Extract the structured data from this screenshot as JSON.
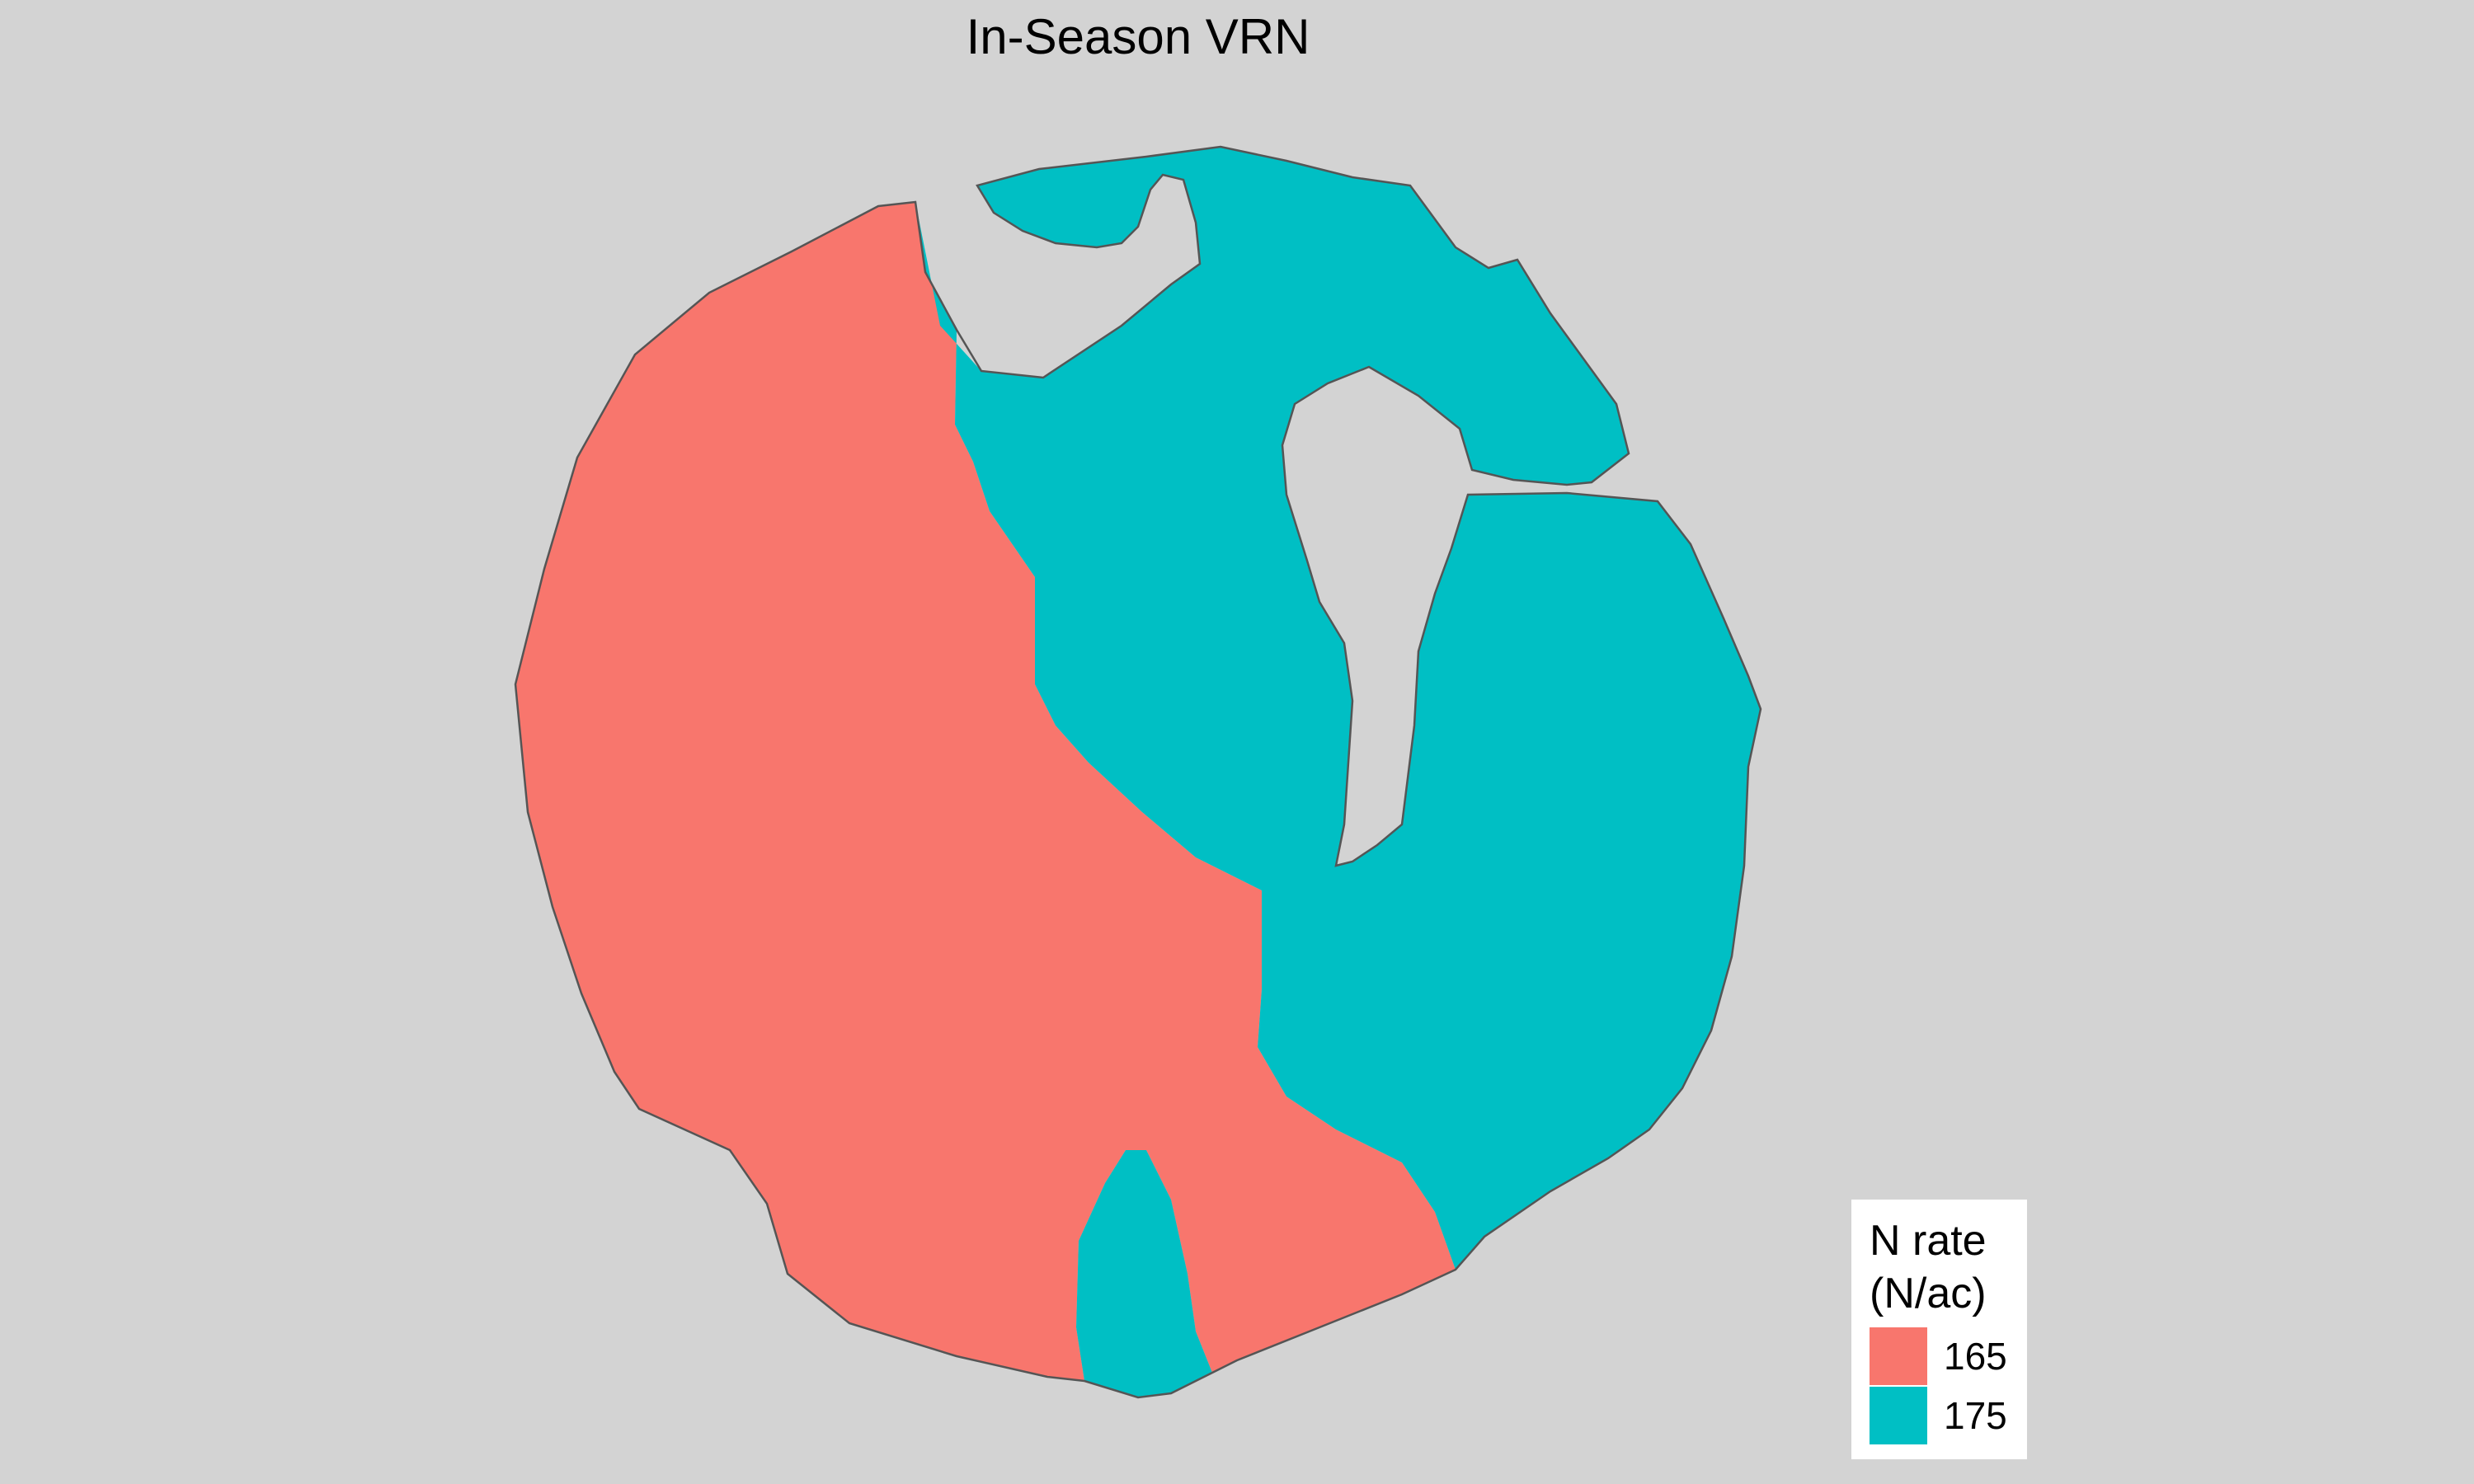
{
  "map": {
    "title": "In-Season VRN"
  },
  "legend": {
    "title_line1": "N rate",
    "title_line2": "(N/ac)",
    "items": [
      {
        "label": "165",
        "color": "#F8766D"
      },
      {
        "label": "175",
        "color": "#00BFC4"
      }
    ]
  },
  "colors": {
    "background": "#D3D3D3",
    "boundary": "#555555"
  }
}
